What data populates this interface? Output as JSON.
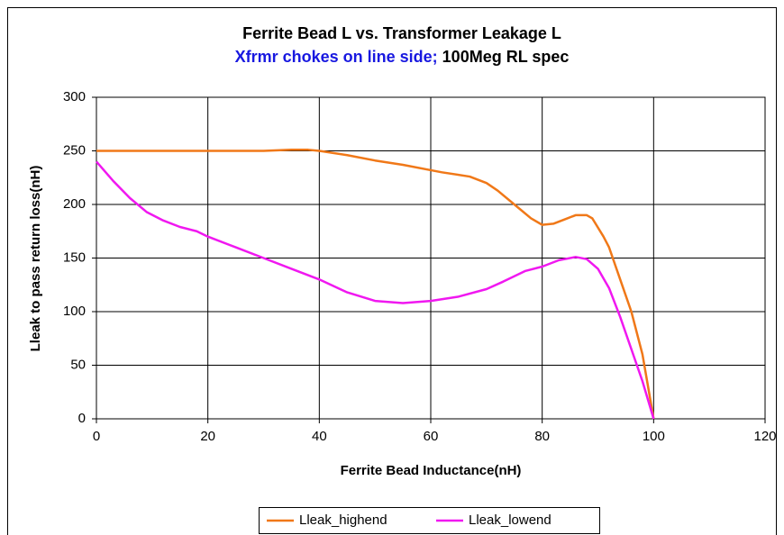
{
  "chart_data": {
    "type": "line",
    "title": "Ferrite Bead L vs. Transformer Leakage L",
    "subtitle": [
      "Xfrmr chokes on line side;",
      "100Meg RL spec"
    ],
    "xlabel": "Ferrite Bead Inductance(nH)",
    "ylabel": "Lleak to pass return loss(nH)",
    "xlim": [
      0,
      120
    ],
    "xticks": [
      0,
      20,
      40,
      60,
      80,
      100,
      120
    ],
    "ylim": [
      0,
      300
    ],
    "yticks": [
      0,
      50,
      100,
      150,
      200,
      250,
      300
    ],
    "grid": true,
    "legend": "bottom",
    "series": [
      {
        "name": "Lleak_highend",
        "color": "#f07818",
        "x": [
          0,
          10,
          20,
          30,
          35,
          38,
          40,
          45,
          50,
          55,
          60,
          62,
          67,
          70,
          72,
          75,
          78,
          80,
          82,
          84,
          86,
          88,
          89,
          91,
          92,
          94,
          96,
          98,
          100
        ],
        "values": [
          250,
          250,
          250,
          250,
          251,
          251,
          250,
          246,
          241,
          237,
          232,
          230,
          226,
          220,
          213,
          200,
          187,
          181,
          182,
          186,
          190,
          190,
          187,
          170,
          160,
          130,
          100,
          60,
          0
        ]
      },
      {
        "name": "Lleak_lowend",
        "color": "#f018f0",
        "x": [
          0,
          3,
          6,
          9,
          12,
          15,
          18,
          20,
          25,
          30,
          35,
          40,
          45,
          50,
          55,
          60,
          65,
          70,
          73,
          77,
          80,
          83,
          86,
          88,
          90,
          92,
          94,
          96,
          98,
          100
        ],
        "values": [
          240,
          222,
          206,
          193,
          185,
          179,
          175,
          170,
          160,
          150,
          140,
          130,
          118,
          110,
          108,
          110,
          114,
          121,
          128,
          138,
          142,
          148,
          151,
          149,
          140,
          122,
          95,
          65,
          35,
          0
        ]
      }
    ]
  }
}
